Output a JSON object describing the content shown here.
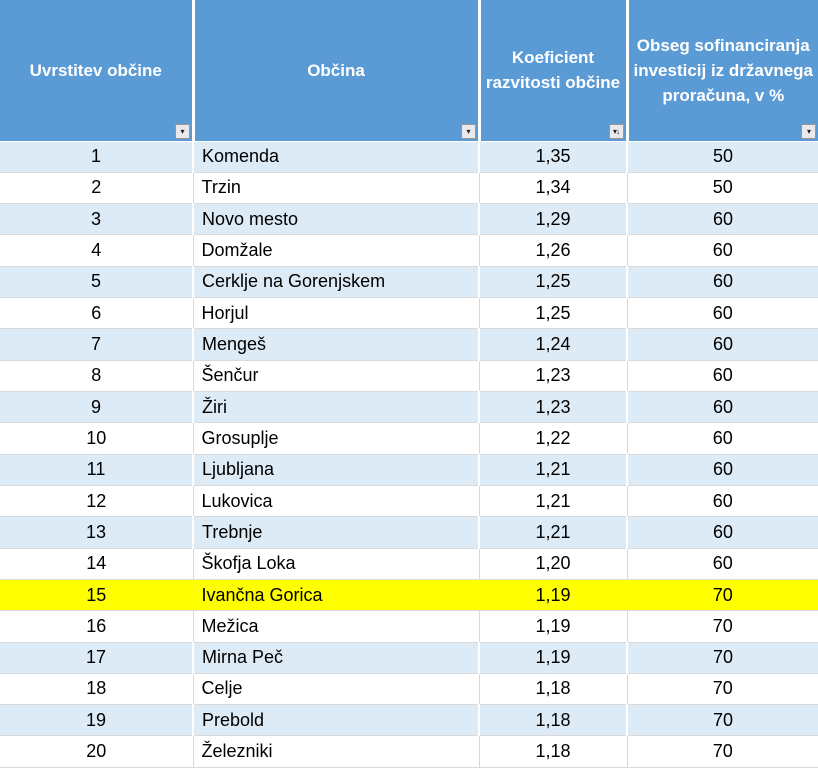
{
  "table": {
    "columns": [
      {
        "label": "Uvrstitev občine",
        "filter_glyph": "▾",
        "sorted": false
      },
      {
        "label": "Občina",
        "filter_glyph": "▾",
        "sorted": false
      },
      {
        "label": "Koeficient razvitosti občine",
        "filter_glyph": "▾↓",
        "sorted": true
      },
      {
        "label": "Obseg sofinanciranja investicij iz državnega proračuna, v %",
        "filter_glyph": "▾",
        "sorted": false
      }
    ],
    "rows": [
      {
        "rank": "1",
        "municipality": "Komenda",
        "koeficient": "1,35",
        "sofinanciranje": "50",
        "highlighted": false
      },
      {
        "rank": "2",
        "municipality": "Trzin",
        "koeficient": "1,34",
        "sofinanciranje": "50",
        "highlighted": false
      },
      {
        "rank": "3",
        "municipality": "Novo mesto",
        "koeficient": "1,29",
        "sofinanciranje": "60",
        "highlighted": false
      },
      {
        "rank": "4",
        "municipality": "Domžale",
        "koeficient": "1,26",
        "sofinanciranje": "60",
        "highlighted": false
      },
      {
        "rank": "5",
        "municipality": "Cerklje na Gorenjskem",
        "koeficient": "1,25",
        "sofinanciranje": "60",
        "highlighted": false
      },
      {
        "rank": "6",
        "municipality": "Horjul",
        "koeficient": "1,25",
        "sofinanciranje": "60",
        "highlighted": false
      },
      {
        "rank": "7",
        "municipality": "Mengeš",
        "koeficient": "1,24",
        "sofinanciranje": "60",
        "highlighted": false
      },
      {
        "rank": "8",
        "municipality": "Šenčur",
        "koeficient": "1,23",
        "sofinanciranje": "60",
        "highlighted": false
      },
      {
        "rank": "9",
        "municipality": "Žiri",
        "koeficient": "1,23",
        "sofinanciranje": "60",
        "highlighted": false
      },
      {
        "rank": "10",
        "municipality": "Grosuplje",
        "koeficient": "1,22",
        "sofinanciranje": "60",
        "highlighted": false
      },
      {
        "rank": "11",
        "municipality": "Ljubljana",
        "koeficient": "1,21",
        "sofinanciranje": "60",
        "highlighted": false
      },
      {
        "rank": "12",
        "municipality": "Lukovica",
        "koeficient": "1,21",
        "sofinanciranje": "60",
        "highlighted": false
      },
      {
        "rank": "13",
        "municipality": "Trebnje",
        "koeficient": "1,21",
        "sofinanciranje": "60",
        "highlighted": false
      },
      {
        "rank": "14",
        "municipality": "Škofja Loka",
        "koeficient": "1,20",
        "sofinanciranje": "60",
        "highlighted": false
      },
      {
        "rank": "15",
        "municipality": "Ivančna Gorica",
        "koeficient": "1,19",
        "sofinanciranje": "70",
        "highlighted": true
      },
      {
        "rank": "16",
        "municipality": "Mežica",
        "koeficient": "1,19",
        "sofinanciranje": "70",
        "highlighted": false
      },
      {
        "rank": "17",
        "municipality": "Mirna Peč",
        "koeficient": "1,19",
        "sofinanciranje": "70",
        "highlighted": false
      },
      {
        "rank": "18",
        "municipality": "Celje",
        "koeficient": "1,18",
        "sofinanciranje": "70",
        "highlighted": false
      },
      {
        "rank": "19",
        "municipality": "Prebold",
        "koeficient": "1,18",
        "sofinanciranje": "70",
        "highlighted": false
      },
      {
        "rank": "20",
        "municipality": "Železniki",
        "koeficient": "1,18",
        "sofinanciranje": "70",
        "highlighted": false
      }
    ]
  },
  "colors": {
    "header_bg": "#5B9BD5",
    "band_bg": "#DDEBF7",
    "plain_bg": "#FFFFFF",
    "highlight_bg": "#FFFF00",
    "header_text": "#FFFFFF",
    "body_text": "#000000",
    "gridline": "#D9D9D9"
  }
}
